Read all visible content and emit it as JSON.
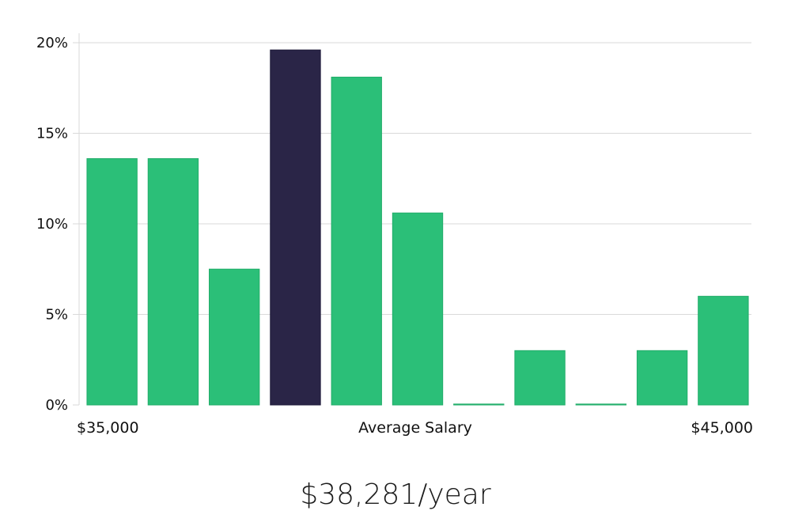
{
  "chart_data": {
    "type": "bar",
    "categories": [
      "1",
      "2",
      "3",
      "4",
      "5",
      "6",
      "7",
      "8",
      "9",
      "10",
      "11"
    ],
    "values": [
      13.6,
      13.6,
      7.5,
      19.6,
      18.1,
      10.6,
      0.05,
      3.0,
      0.05,
      3.0,
      6.0
    ],
    "highlight_index": 3,
    "ylim": [
      0,
      20
    ],
    "yticks": [
      0,
      5,
      10,
      15,
      20
    ],
    "ytick_labels": [
      "0%",
      "5%",
      "10%",
      "15%",
      "20%"
    ],
    "x_range_labels": {
      "min": "$35,000",
      "max": "$45,000"
    },
    "xlabel": "Average Salary",
    "grid": true,
    "colors": {
      "bar": "#2bbf78",
      "highlight": "#2a2547",
      "grid": "#d9d9d9"
    }
  },
  "summary": {
    "salary": "$38,281/year"
  }
}
